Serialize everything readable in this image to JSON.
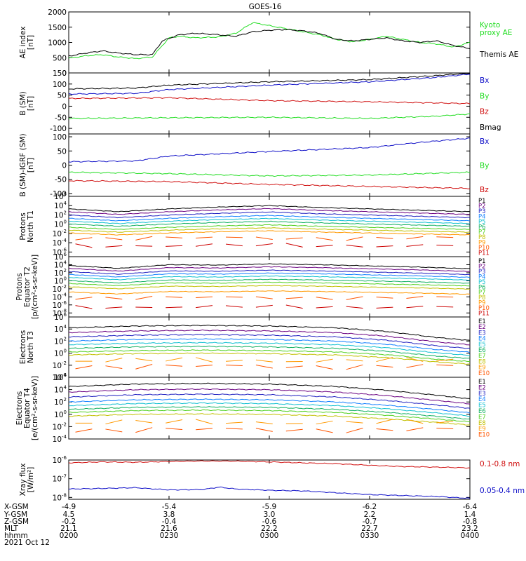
{
  "title": "GOES-16",
  "footer": {
    "row_labels": [
      "X-GSM",
      "Y-GSM",
      "Z-GSM",
      "MLT",
      "hhmm"
    ],
    "columns": [
      [
        "-4.9",
        "4.5",
        "-0.2",
        "21.1",
        "0200"
      ],
      [
        "-5.4",
        "3.8",
        "-0.4",
        "21.6",
        "0230"
      ],
      [
        "-5.9",
        "3.0",
        "-0.6",
        "22.2",
        "0300"
      ],
      [
        "-6.2",
        "2.2",
        "-0.7",
        "22.7",
        "0330"
      ],
      [
        "-6.4",
        "1.4",
        "-0.8",
        "23.2",
        "0400"
      ]
    ],
    "date": "2021 Oct 12"
  },
  "colors": {
    "black": "#000000",
    "green": "#22dd22",
    "blue": "#1010c8",
    "red": "#d01010",
    "protons": [
      "#000000",
      "#6a0080",
      "#2020c0",
      "#1080ff",
      "#10c0d0",
      "#10b060",
      "#50d020",
      "#c0c000",
      "#ff9900",
      "#ff5500",
      "#cc0000"
    ],
    "electrons": [
      "#000000",
      "#6a0080",
      "#2020c0",
      "#1080ff",
      "#10c0d0",
      "#10b060",
      "#50d020",
      "#c0c000",
      "#ff9900",
      "#ff5500",
      "#cc0000"
    ]
  },
  "chart_data": [
    {
      "type": "line",
      "ylabel": [
        "AE index",
        "[nT]"
      ],
      "ylim": [
        0,
        2000
      ],
      "yticks": [
        "0",
        "500",
        "1000",
        "1500",
        "2000"
      ],
      "series": [
        {
          "name": "Kyoto proxy AE",
          "color": "#22dd22",
          "x": [
            0,
            5,
            10,
            15,
            20,
            25,
            30,
            33,
            38,
            45,
            50,
            55,
            60,
            65,
            70,
            75,
            80,
            85,
            90,
            95,
            100,
            105,
            110,
            115,
            120
          ],
          "y": [
            480,
            560,
            600,
            520,
            470,
            520,
            1150,
            1200,
            1150,
            1180,
            1300,
            1650,
            1550,
            1450,
            1350,
            1250,
            1100,
            1020,
            1100,
            1200,
            1100,
            1000,
            950,
            850,
            1000
          ]
        },
        {
          "name": "Themis AE",
          "color": "#000000",
          "x": [
            0,
            5,
            10,
            15,
            20,
            25,
            28,
            33,
            38,
            45,
            50,
            55,
            60,
            65,
            70,
            75,
            80,
            85,
            90,
            95,
            100,
            105,
            110,
            115,
            120
          ],
          "y": [
            550,
            650,
            720,
            650,
            600,
            600,
            1050,
            1250,
            1300,
            1250,
            1200,
            1350,
            1400,
            1420,
            1380,
            1300,
            1100,
            1050,
            1100,
            1150,
            1050,
            1000,
            1050,
            900,
            800
          ]
        }
      ],
      "legend": [
        {
          "text": "Kyoto",
          "color": "#22dd22"
        },
        {
          "text": "proxy AE",
          "color": "#22dd22"
        },
        {
          "text": "Themis AE",
          "color": "#000000"
        }
      ]
    },
    {
      "type": "line",
      "ylabel": [
        "B (SM)",
        "[nT]"
      ],
      "ylim": [
        -125,
        150
      ],
      "yticks": [
        "-100",
        "-50",
        "0",
        "50",
        "100",
        "150"
      ],
      "series": [
        {
          "name": "Bx",
          "color": "#1010c8",
          "x": [
            0,
            20,
            30,
            60,
            90,
            110,
            120
          ],
          "y": [
            55,
            58,
            75,
            95,
            110,
            130,
            145
          ]
        },
        {
          "name": "By",
          "color": "#22dd22",
          "x": [
            0,
            30,
            60,
            90,
            110,
            120
          ],
          "y": [
            -55,
            -52,
            -50,
            -55,
            -45,
            -35
          ]
        },
        {
          "name": "Bz",
          "color": "#d01010",
          "x": [
            0,
            30,
            60,
            90,
            120
          ],
          "y": [
            35,
            38,
            25,
            20,
            12
          ]
        },
        {
          "name": "Bmag",
          "color": "#000000",
          "x": [
            0,
            20,
            30,
            60,
            90,
            110,
            120
          ],
          "y": [
            78,
            82,
            95,
            110,
            120,
            138,
            150
          ]
        }
      ],
      "legend": [
        {
          "text": "Bx",
          "color": "#1010c8"
        },
        {
          "text": "By",
          "color": "#22dd22"
        },
        {
          "text": "Bz",
          "color": "#d01010"
        },
        {
          "text": "Bmag",
          "color": "#000000"
        }
      ]
    },
    {
      "type": "line",
      "ylabel": [
        "B (SM)-IGRF (SM)",
        "[nT]"
      ],
      "ylim": [
        -110,
        110
      ],
      "yticks": [
        "-100",
        "-50",
        "0",
        "50",
        "100"
      ],
      "series": [
        {
          "name": "Bx",
          "color": "#1010c8",
          "x": [
            0,
            20,
            30,
            60,
            90,
            105,
            120
          ],
          "y": [
            12,
            15,
            32,
            48,
            62,
            80,
            95
          ]
        },
        {
          "name": "By",
          "color": "#22dd22",
          "x": [
            0,
            30,
            60,
            90,
            120
          ],
          "y": [
            -25,
            -30,
            -38,
            -35,
            -25
          ]
        },
        {
          "name": "Bz",
          "color": "#d01010",
          "x": [
            0,
            30,
            60,
            90,
            120
          ],
          "y": [
            -55,
            -58,
            -68,
            -75,
            -82
          ]
        }
      ],
      "legend": [
        {
          "text": "Bx",
          "color": "#1010c8"
        },
        {
          "text": "By",
          "color": "#22dd22"
        },
        {
          "text": "Bz",
          "color": "#d01010"
        }
      ]
    },
    {
      "type": "line",
      "scale": "log",
      "ylabel": [
        "Protons",
        "North T1"
      ],
      "ylim_exp": [
        -7,
        6
      ],
      "yticks_exp": [
        -6,
        -4,
        -2,
        0,
        2,
        4,
        6
      ],
      "channels": [
        "P1",
        "P2",
        "P3",
        "P4",
        "P5",
        "P6",
        "P7",
        "P8",
        "P9",
        "P10",
        "P11"
      ],
      "levels_log10": [
        3.0,
        2.4,
        1.7,
        1.0,
        0.4,
        -0.2,
        -0.9,
        -1.5,
        -2.1,
        -3.0,
        -4.6
      ],
      "shape": {
        "x": [
          0,
          15,
          30,
          45,
          60,
          75,
          90,
          105,
          120
        ],
        "dy": [
          0.3,
          -0.3,
          0.3,
          0.7,
          1.0,
          0.6,
          0.3,
          0.0,
          -0.3
        ]
      }
    },
    {
      "type": "line",
      "scale": "log",
      "ylabel": [
        "Protons",
        "Equator T2",
        "[p/(cm²-s-sr-keV)]"
      ],
      "ylim_exp": [
        -9,
        6
      ],
      "yticks_exp": [
        -8,
        -6,
        -4,
        -2,
        0,
        2,
        4,
        6
      ],
      "channels": [
        "P1",
        "P2",
        "P3",
        "P4",
        "P5",
        "P6",
        "P7",
        "P8",
        "P9",
        "P10",
        "P11"
      ],
      "levels_log10": [
        3.5,
        2.8,
        2.0,
        1.3,
        0.6,
        -0.2,
        -0.9,
        -1.7,
        -3.0,
        -4.2,
        -6.5
      ],
      "shape": {
        "x": [
          0,
          15,
          30,
          45,
          60,
          75,
          90,
          105,
          120
        ],
        "dy": [
          0.3,
          -0.4,
          0.5,
          0.4,
          0.7,
          0.5,
          0.2,
          -0.1,
          -0.5
        ]
      }
    },
    {
      "type": "line",
      "scale": "log",
      "ylabel": [
        "Electrons",
        "North T3"
      ],
      "ylim_exp": [
        -4,
        6
      ],
      "yticks_exp": [
        -4,
        -2,
        0,
        2,
        4,
        6
      ],
      "channels": [
        "E1",
        "E2",
        "E3",
        "E4",
        "E5",
        "E6",
        "E7",
        "E8",
        "E9",
        "E10"
      ],
      "levels_log10": [
        4.2,
        3.4,
        2.7,
        2.0,
        1.4,
        0.8,
        0.2,
        -0.3,
        -1.2,
        -2.2
      ],
      "shape": {
        "x": [
          0,
          20,
          40,
          60,
          80,
          95,
          110,
          120
        ],
        "dy": [
          0.0,
          0.3,
          0.4,
          0.3,
          0.0,
          -0.6,
          -1.6,
          -2.1
        ]
      }
    },
    {
      "type": "line",
      "scale": "log",
      "ylabel": [
        "Electrons",
        "Equator T4",
        "[e/(cm²-s-sr-keV)]"
      ],
      "ylim_exp": [
        -4,
        6
      ],
      "yticks_exp": [
        -4,
        -2,
        0,
        2,
        4,
        6
      ],
      "channels": [
        "E1",
        "E2",
        "E3",
        "E4",
        "E5",
        "E6",
        "E7",
        "E8",
        "E9",
        "E10"
      ],
      "levels_log10": [
        4.5,
        3.6,
        2.8,
        2.0,
        1.4,
        0.8,
        0.3,
        -0.3,
        -1.3,
        -2.5
      ],
      "shape": {
        "x": [
          0,
          20,
          40,
          60,
          80,
          95,
          110,
          120
        ],
        "dy": [
          0.0,
          0.4,
          0.5,
          0.4,
          0.0,
          -0.6,
          -1.4,
          -2.0
        ]
      }
    },
    {
      "type": "line",
      "scale": "log",
      "ylabel": [
        "Xray flux",
        "[W/m²]"
      ],
      "ylim_exp": [
        -8.1,
        -6
      ],
      "yticks_exp": [
        -8,
        -7,
        -6
      ],
      "series": [
        {
          "name": "0.1-0.8 nm",
          "color": "#d01010",
          "x": [
            0,
            10,
            20,
            30,
            40,
            50,
            60,
            70,
            80,
            90,
            100,
            110,
            120
          ],
          "y": [
            -6.15,
            -6.1,
            -6.12,
            -6.08,
            -6.05,
            -6.06,
            -6.1,
            -6.15,
            -6.2,
            -6.28,
            -6.35,
            -6.38,
            -6.42
          ]
        },
        {
          "name": "0.05-0.4 nm",
          "color": "#1010c8",
          "x": [
            0,
            10,
            20,
            30,
            40,
            45,
            50,
            60,
            70,
            80,
            90,
            100,
            110,
            120
          ],
          "y": [
            -7.55,
            -7.52,
            -7.48,
            -7.6,
            -7.58,
            -7.45,
            -7.55,
            -7.62,
            -7.65,
            -7.75,
            -7.85,
            -7.9,
            -7.95,
            -8.05
          ]
        }
      ],
      "legend": [
        {
          "text": "0.1-0.8 nm",
          "color": "#d01010"
        },
        {
          "text": "0.05-0.4 nm",
          "color": "#1010c8"
        }
      ]
    }
  ]
}
